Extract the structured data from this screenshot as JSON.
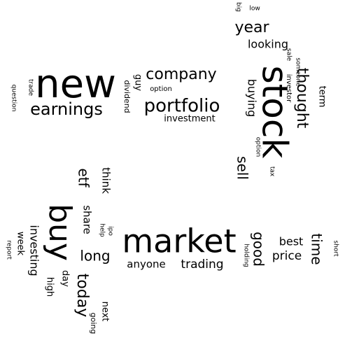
{
  "colors": {
    "background": "#ffffff",
    "text": "#000000"
  },
  "words": [
    {
      "key": "stock",
      "text": "stock"
    },
    {
      "key": "new",
      "text": "new"
    },
    {
      "key": "market",
      "text": "market"
    },
    {
      "key": "buy",
      "text": "buy"
    },
    {
      "key": "portfolio",
      "text": "portfolio"
    },
    {
      "key": "earnings",
      "text": "earnings"
    },
    {
      "key": "company",
      "text": "company"
    },
    {
      "key": "year",
      "text": "year"
    },
    {
      "key": "thought",
      "text": "thought"
    },
    {
      "key": "today",
      "text": "today"
    },
    {
      "key": "time",
      "text": "time"
    },
    {
      "key": "good",
      "text": "good"
    },
    {
      "key": "sell",
      "text": "sell"
    },
    {
      "key": "long",
      "text": "long"
    },
    {
      "key": "etf",
      "text": "etf"
    },
    {
      "key": "trading",
      "text": "trading"
    },
    {
      "key": "price",
      "text": "price"
    },
    {
      "key": "investing",
      "text": "investing"
    },
    {
      "key": "looking",
      "text": "looking"
    },
    {
      "key": "buying",
      "text": "buying"
    },
    {
      "key": "best",
      "text": "best"
    },
    {
      "key": "anyone",
      "text": "anyone"
    },
    {
      "key": "share",
      "text": "share"
    },
    {
      "key": "think",
      "text": "think"
    },
    {
      "key": "investment",
      "text": "investment"
    },
    {
      "key": "week",
      "text": "week"
    },
    {
      "key": "next",
      "text": "next"
    },
    {
      "key": "day",
      "text": "day"
    },
    {
      "key": "guy",
      "text": "guy"
    },
    {
      "key": "term",
      "text": "term"
    },
    {
      "key": "high",
      "text": "high"
    },
    {
      "key": "going",
      "text": "going"
    },
    {
      "key": "dividend",
      "text": "dividend"
    },
    {
      "key": "option_upper",
      "text": "option"
    },
    {
      "key": "option_lower",
      "text": "option"
    },
    {
      "key": "investor",
      "text": "investor"
    },
    {
      "key": "someone",
      "text": "someone"
    },
    {
      "key": "sale",
      "text": "sale"
    },
    {
      "key": "tax",
      "text": "tax"
    },
    {
      "key": "holding",
      "text": "holding"
    },
    {
      "key": "short",
      "text": "short"
    },
    {
      "key": "ipo",
      "text": "ipo"
    },
    {
      "key": "help",
      "text": "help"
    },
    {
      "key": "report",
      "text": "report"
    },
    {
      "key": "question",
      "text": "question"
    },
    {
      "key": "trade",
      "text": "trade"
    },
    {
      "key": "low",
      "text": "low"
    },
    {
      "key": "big",
      "text": "big"
    }
  ]
}
